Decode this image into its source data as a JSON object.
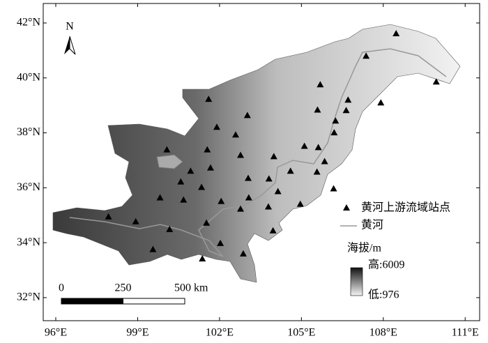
{
  "chart_data": {
    "type": "map",
    "xlim": [
      95.54,
      111.53
    ],
    "ylim": [
      31.16,
      42.71
    ],
    "xticks": [
      {
        "value": 96,
        "label": "96°E"
      },
      {
        "value": 99,
        "label": "99°E"
      },
      {
        "value": 102,
        "label": "102°E"
      },
      {
        "value": 105,
        "label": "105°E"
      },
      {
        "value": 108,
        "label": "108°E"
      },
      {
        "value": 111,
        "label": "111°E"
      }
    ],
    "yticks": [
      {
        "value": 32,
        "label": "32°N"
      },
      {
        "value": 34,
        "label": "34°N"
      },
      {
        "value": 36,
        "label": "36°N"
      },
      {
        "value": 38,
        "label": "38°N"
      },
      {
        "value": 40,
        "label": "40°N"
      },
      {
        "value": 42,
        "label": "42°N"
      }
    ],
    "north": "N",
    "series": [
      {
        "name": "黄河上游流域站点",
        "color": "#000000",
        "x": [
          108.47,
          107.37,
          109.94,
          105.69,
          101.6,
          106.71,
          105.59,
          107.91,
          103.02,
          106.64,
          106.25,
          101.9,
          102.59,
          106.2,
          100.07,
          105.11,
          105.62,
          101.55,
          102.77,
          103.99,
          105.85,
          101.67,
          100.94,
          104.6,
          105.57,
          103.05,
          100.58,
          103.81,
          106.18,
          101.34,
          99.82,
          100.68,
          102.06,
          104.14,
          103.07,
          104.96,
          103.79,
          102.77,
          97.93,
          98.93,
          101.52,
          100.17,
          103.96,
          99.56,
          102.03,
          102.87,
          101.37
        ],
        "values": [
          41.62,
          40.8,
          39.86,
          39.76,
          39.23,
          39.2,
          38.84,
          39.1,
          38.64,
          38.82,
          38.44,
          38.21,
          37.93,
          38.01,
          37.39,
          37.52,
          37.47,
          37.39,
          37.19,
          37.14,
          36.96,
          36.73,
          36.61,
          36.61,
          36.58,
          36.35,
          36.22,
          36.33,
          35.97,
          36.02,
          35.64,
          35.56,
          35.51,
          35.87,
          35.64,
          35.41,
          35.31,
          35.23,
          34.95,
          34.77,
          34.72,
          34.49,
          34.44,
          33.76,
          33.98,
          33.6,
          33.42
        ]
      },
      {
        "name": "黄河",
        "color": "#999999"
      }
    ],
    "elevation": {
      "title": "海拔/m",
      "max": {
        "value": 6009,
        "label": "高:6009"
      },
      "min": {
        "value": 976,
        "label": "低:976"
      }
    },
    "scale_bar": {
      "ticks": [
        0,
        250,
        {
          "value": 500,
          "label": "500 km"
        }
      ]
    }
  }
}
